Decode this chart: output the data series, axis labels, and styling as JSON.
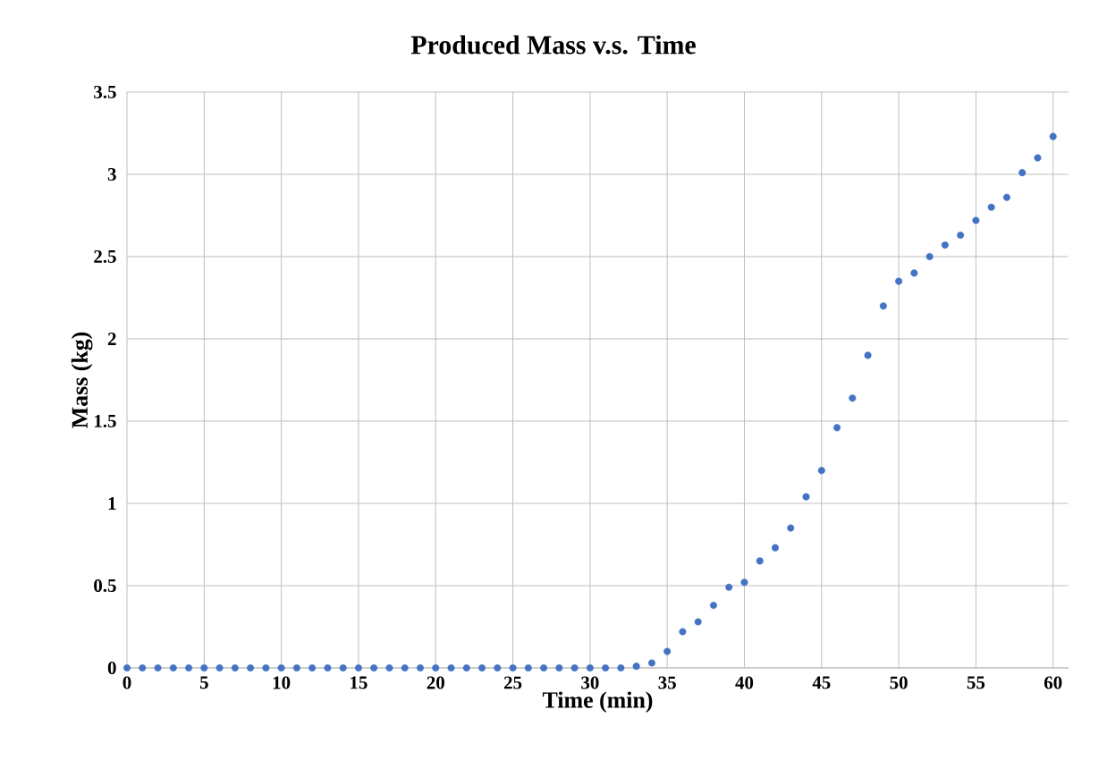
{
  "chart_data": {
    "type": "scatter",
    "title": "Produced Mass v.s. Time",
    "xlabel": "Time (min)",
    "ylabel": "Mass (kg)",
    "x": [
      0,
      1,
      2,
      3,
      4,
      5,
      6,
      7,
      8,
      9,
      10,
      11,
      12,
      13,
      14,
      15,
      16,
      17,
      18,
      19,
      20,
      21,
      22,
      23,
      24,
      25,
      26,
      27,
      28,
      29,
      30,
      31,
      32,
      33,
      34,
      35,
      36,
      37,
      38,
      39,
      40,
      41,
      42,
      43,
      44,
      45,
      46,
      47,
      48,
      49,
      50,
      51,
      52,
      53,
      54,
      55,
      56,
      57,
      58,
      59,
      60
    ],
    "values": [
      0,
      0,
      0,
      0,
      0,
      0,
      0,
      0,
      0,
      0,
      0,
      0,
      0,
      0,
      0,
      0,
      0,
      0,
      0,
      0,
      0,
      0,
      0,
      0,
      0,
      0,
      0,
      0,
      0,
      0,
      0,
      0,
      0,
      0.01,
      0.03,
      0.1,
      0.22,
      0.28,
      0.38,
      0.49,
      0.52,
      0.65,
      0.73,
      0.85,
      1.04,
      1.2,
      1.46,
      1.64,
      1.9,
      2.2,
      2.35,
      2.4,
      2.5,
      2.57,
      2.63,
      2.72,
      2.8,
      2.86,
      3.01,
      3.1,
      3.23
    ],
    "color": "#4472c4",
    "marker": "circle",
    "xlim": [
      0,
      61
    ],
    "xticks": [
      0,
      5,
      10,
      15,
      20,
      25,
      30,
      35,
      40,
      45,
      50,
      55,
      60
    ],
    "ylim": [
      0,
      3.5
    ],
    "yticks": [
      0,
      0.5,
      1,
      1.5,
      2,
      2.5,
      3,
      3.5
    ],
    "grid": true
  }
}
